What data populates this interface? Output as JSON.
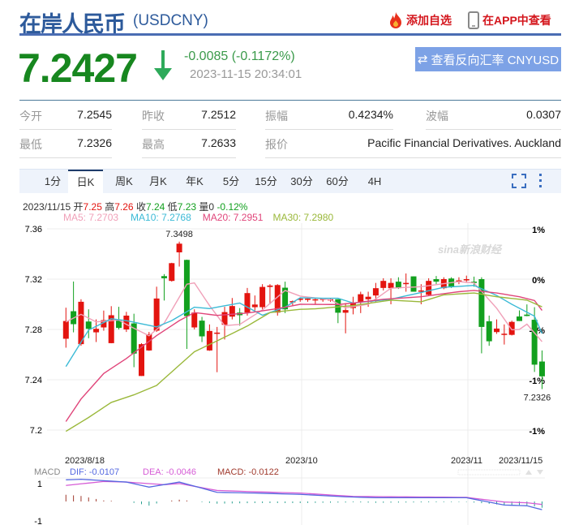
{
  "header": {
    "title": "在岸人民币",
    "code": "(USDCNY)",
    "add_watch": "添加自选",
    "view_app": "在APP中查看"
  },
  "quote": {
    "price": "7.2427",
    "change": "-0.0085 (-0.1172%)",
    "time": "2023-11-15 20:34:01",
    "reverse_button": "查看反向汇率 CNYUSD",
    "direction": "down"
  },
  "stats": [
    [
      {
        "label": "今开",
        "value": "7.2545"
      },
      {
        "label": "昨收",
        "value": "7.2512"
      },
      {
        "label": "振幅",
        "value": "0.4234%"
      },
      {
        "label": "波幅",
        "value": "0.0307"
      }
    ],
    [
      {
        "label": "最低",
        "value": "7.2326"
      },
      {
        "label": "最高",
        "value": "7.2633"
      },
      {
        "label": "报价",
        "value": "Pacific Financial Derivatives. Auckland"
      }
    ]
  ],
  "tabs": [
    "1分",
    "日K",
    "周K",
    "月K",
    "年K",
    "5分",
    "15分",
    "30分",
    "60分",
    "4H"
  ],
  "active_tab": "日K",
  "info": {
    "date": "2023/11/15",
    "open_label": "开",
    "open": "7.25",
    "high_label": "高",
    "high": "7.26",
    "close_label": "收",
    "close": "7.24",
    "low_label": "低",
    "low": "7.23",
    "vol_label": "量",
    "vol": "0",
    "pct": "-0.12%"
  },
  "ma_legend": [
    {
      "text": "MA5: 7.2703",
      "color": "#f0a0b8"
    },
    {
      "text": "MA10: 7.2768",
      "color": "#3bbad6"
    },
    {
      "text": "MA20: 7.2951",
      "color": "#e0457a"
    },
    {
      "text": "MA30: 7.2980",
      "color": "#9ab83a"
    }
  ],
  "watermark": "sina新浪财经",
  "colors": {
    "up": "#e3140f",
    "down": "#12a01e",
    "accent": "#2d5a9b"
  },
  "chart_data": {
    "type": "candlestick",
    "yticks": [
      "7.36",
      "7.32",
      "7.28",
      "7.24",
      "7.2"
    ],
    "ylim": [
      7.2,
      7.36
    ],
    "right_ticks": [
      "1%",
      "0%",
      "-1%",
      "-1%",
      "-1%"
    ],
    "xticks": [
      {
        "label": "2023/8/18",
        "index": 0
      },
      {
        "label": "2023/10",
        "index": 31
      },
      {
        "label": "2023/11",
        "index": 53
      },
      {
        "label": "2023/11/15",
        "index": 63
      }
    ],
    "max_label": {
      "text": "7.3498",
      "index": 15
    },
    "min_label": {
      "text": "7.2326",
      "index": 63
    },
    "ohlc": [
      [
        7.2726,
        7.2973,
        7.2655,
        7.2867
      ],
      [
        7.2945,
        7.3181,
        7.2777,
        7.2842
      ],
      [
        7.2683,
        7.304,
        7.267,
        7.302
      ],
      [
        7.2863,
        7.296,
        7.273,
        7.2805
      ],
      [
        7.2777,
        7.288,
        7.27,
        7.2805
      ],
      [
        7.2816,
        7.295,
        7.279,
        7.2874
      ],
      [
        7.2691,
        7.2985,
        7.269,
        7.2913
      ],
      [
        7.2874,
        7.298,
        7.28,
        7.2812
      ],
      [
        7.28,
        7.294,
        7.278,
        7.291
      ],
      [
        7.2848,
        7.2925,
        7.25,
        7.2608
      ],
      [
        7.243,
        7.269,
        7.243,
        7.2683
      ],
      [
        7.2633,
        7.278,
        7.263,
        7.2762
      ],
      [
        7.279,
        7.314,
        7.278,
        7.3046
      ],
      [
        7.3224,
        7.324,
        7.303,
        7.3207
      ],
      [
        7.3186,
        7.333,
        7.318,
        7.3327
      ],
      [
        7.3413,
        7.3498,
        7.33,
        7.3482
      ],
      [
        7.3353,
        7.3355,
        7.2645,
        7.2906
      ],
      [
        7.2816,
        7.296,
        7.28,
        7.2934
      ],
      [
        7.287,
        7.29,
        7.27,
        7.2745
      ],
      [
        7.2633,
        7.284,
        7.263,
        7.2788
      ],
      [
        7.2765,
        7.282,
        7.246,
        7.2775
      ],
      [
        7.2837,
        7.298,
        7.272,
        7.2938
      ],
      [
        7.2902,
        7.305,
        7.288,
        7.2986
      ],
      [
        7.2934,
        7.297,
        7.283,
        7.2913
      ],
      [
        7.2934,
        7.313,
        7.291,
        7.3089
      ],
      [
        7.2977,
        7.307,
        7.295,
        7.2998
      ],
      [
        7.2977,
        7.316,
        7.296,
        7.3138
      ],
      [
        7.3138,
        7.316,
        7.3,
        7.3149
      ],
      [
        7.2934,
        7.316,
        7.291,
        7.3153
      ],
      [
        7.3132,
        7.318,
        7.293,
        7.296
      ],
      [
        7.3015,
        7.303,
        7.299,
        7.3025
      ],
      [
        7.3035,
        7.305,
        7.302,
        7.3045
      ],
      [
        7.3035,
        7.305,
        7.302,
        7.3045
      ],
      [
        7.3035,
        7.305,
        7.3,
        7.304
      ],
      [
        7.3035,
        7.305,
        7.302,
        7.3045
      ],
      [
        7.304,
        7.305,
        7.302,
        7.304
      ],
      [
        7.304,
        7.304,
        7.285,
        7.2933
      ],
      [
        7.2933,
        7.301,
        7.2769,
        7.2954
      ],
      [
        7.297,
        7.306,
        7.292,
        7.301
      ],
      [
        7.302,
        7.31,
        7.293,
        7.308
      ],
      [
        7.304,
        7.31,
        7.298,
        7.306
      ],
      [
        7.307,
        7.317,
        7.302,
        7.3128
      ],
      [
        7.313,
        7.3207,
        7.311,
        7.3186
      ],
      [
        7.3128,
        7.3207,
        7.3,
        7.317
      ],
      [
        7.318,
        7.3215,
        7.3122,
        7.3128
      ],
      [
        7.316,
        7.3245,
        7.31,
        7.317
      ],
      [
        7.3222,
        7.3222,
        7.31,
        7.31
      ],
      [
        7.31,
        7.316,
        7.3,
        7.311
      ],
      [
        7.3075,
        7.3207,
        7.307,
        7.3186
      ],
      [
        7.32,
        7.3225,
        7.316,
        7.318
      ],
      [
        7.3128,
        7.3215,
        7.312,
        7.32
      ],
      [
        7.3205,
        7.3215,
        7.313,
        7.314
      ],
      [
        7.318,
        7.3215,
        7.316,
        7.319
      ],
      [
        7.319,
        7.3228,
        7.317,
        7.32
      ],
      [
        7.318,
        7.322,
        7.314,
        7.317
      ],
      [
        7.32,
        7.3215,
        7.261,
        7.282
      ],
      [
        7.2865,
        7.291,
        7.267,
        7.2706
      ],
      [
        7.2779,
        7.288,
        7.2765,
        7.2807
      ],
      [
        7.2762,
        7.284,
        7.268,
        7.2766
      ],
      [
        7.2757,
        7.287,
        7.2752,
        7.286
      ],
      [
        7.2903,
        7.2952,
        7.2867,
        7.2867
      ],
      [
        7.2918,
        7.2999,
        7.2905,
        7.2907
      ],
      [
        7.2877,
        7.2977,
        7.2462,
        7.252
      ],
      [
        7.2545,
        7.2633,
        7.2326,
        7.2427
      ]
    ],
    "ma": [
      {
        "name": "MA5",
        "color": "#f0a0b8",
        "points": [
          [
            0,
            7.286
          ],
          [
            2,
            7.292
          ],
          [
            4,
            7.286
          ],
          [
            7,
            7.2875
          ],
          [
            8,
            7.284
          ],
          [
            11,
            7.275
          ],
          [
            13,
            7.285
          ],
          [
            16,
            7.316
          ],
          [
            17,
            7.317
          ],
          [
            19,
            7.299
          ],
          [
            21,
            7.283
          ],
          [
            23,
            7.284
          ],
          [
            26,
            7.2955
          ],
          [
            29,
            7.311
          ],
          [
            31,
            7.3065
          ],
          [
            35,
            7.3036
          ],
          [
            37,
            7.2972
          ],
          [
            40,
            7.3
          ],
          [
            43,
            7.3128
          ],
          [
            47,
            7.314
          ],
          [
            52,
            7.318
          ],
          [
            54,
            7.317
          ],
          [
            57,
            7.2968
          ],
          [
            59,
            7.2797
          ],
          [
            60,
            7.28
          ],
          [
            61,
            7.2842
          ],
          [
            63,
            7.2703
          ]
        ]
      },
      {
        "name": "MA10",
        "color": "#3bbad6",
        "points": [
          [
            0,
            7.2505
          ],
          [
            3,
            7.2795
          ],
          [
            6,
            7.2885
          ],
          [
            8,
            7.287
          ],
          [
            12,
            7.282
          ],
          [
            14,
            7.287
          ],
          [
            17,
            7.2977
          ],
          [
            19,
            7.2966
          ],
          [
            23,
            7.301
          ],
          [
            26,
            7.2913
          ],
          [
            29,
            7.2977
          ],
          [
            31,
            7.3052
          ],
          [
            34,
            7.3048
          ],
          [
            36,
            7.3048
          ],
          [
            38,
            7.301
          ],
          [
            43,
            7.304
          ],
          [
            47,
            7.3094
          ],
          [
            50,
            7.3135
          ],
          [
            54,
            7.315
          ],
          [
            57,
            7.307
          ],
          [
            59,
            7.3
          ],
          [
            62,
            7.2906
          ],
          [
            63,
            7.2768
          ]
        ]
      },
      {
        "name": "MA20",
        "color": "#e0457a",
        "points": [
          [
            0,
            7.2068
          ],
          [
            2,
            7.2247
          ],
          [
            5,
            7.245
          ],
          [
            8,
            7.2569
          ],
          [
            12,
            7.2751
          ],
          [
            15,
            7.287
          ],
          [
            17,
            7.2934
          ],
          [
            20,
            7.2912
          ],
          [
            24,
            7.293
          ],
          [
            28,
            7.2966
          ],
          [
            31,
            7.3
          ],
          [
            36,
            7.2998
          ],
          [
            38,
            7.301
          ],
          [
            42,
            7.304
          ],
          [
            47,
            7.306
          ],
          [
            52,
            7.31
          ],
          [
            54,
            7.311
          ],
          [
            57,
            7.309
          ],
          [
            60,
            7.306
          ],
          [
            62,
            7.303
          ],
          [
            63,
            7.2951
          ]
        ]
      },
      {
        "name": "MA30",
        "color": "#9ab83a",
        "points": [
          [
            0,
            7.199
          ],
          [
            3,
            7.21
          ],
          [
            6,
            7.222
          ],
          [
            9,
            7.228
          ],
          [
            12,
            7.2355
          ],
          [
            15,
            7.2516
          ],
          [
            17,
            7.2623
          ],
          [
            20,
            7.2709
          ],
          [
            24,
            7.2827
          ],
          [
            27,
            7.2934
          ],
          [
            31,
            7.296
          ],
          [
            33,
            7.2964
          ],
          [
            38,
            7.299
          ],
          [
            43,
            7.3033
          ],
          [
            47,
            7.302
          ],
          [
            50,
            7.3075
          ],
          [
            54,
            7.309
          ],
          [
            57,
            7.306
          ],
          [
            61,
            7.3033
          ],
          [
            63,
            7.298
          ]
        ]
      }
    ],
    "macd": {
      "label": "MACD",
      "dif_label": "DIF: -0.0107",
      "dea_label": "DEA: -0.0046",
      "macd_label": "MACD: -0.0122",
      "dif_color": "#5468e0",
      "dea_color": "#d65cd6",
      "macd_color": "#a0392c",
      "yticks": [
        "1",
        "-1"
      ],
      "dif": [
        [
          0,
          1.16
        ],
        [
          2,
          1.19
        ],
        [
          8,
          1.04
        ],
        [
          11,
          0.77
        ],
        [
          15,
          1.04
        ],
        [
          20,
          0.49
        ],
        [
          25,
          0.45
        ],
        [
          31,
          0.38
        ],
        [
          37,
          0.25
        ],
        [
          41,
          0.2
        ],
        [
          53,
          0.2
        ],
        [
          58,
          -0.19
        ],
        [
          61,
          -0.23
        ],
        [
          63,
          -0.44
        ]
      ],
      "dea": [
        [
          0,
          0.86
        ],
        [
          5,
          1.07
        ],
        [
          8,
          1.04
        ],
        [
          13,
          0.9
        ],
        [
          15,
          0.96
        ],
        [
          20,
          0.59
        ],
        [
          25,
          0.52
        ],
        [
          31,
          0.45
        ],
        [
          38,
          0.27
        ],
        [
          53,
          0.22
        ],
        [
          58,
          -0.03
        ],
        [
          61,
          -0.07
        ],
        [
          63,
          -0.16
        ]
      ]
    }
  }
}
